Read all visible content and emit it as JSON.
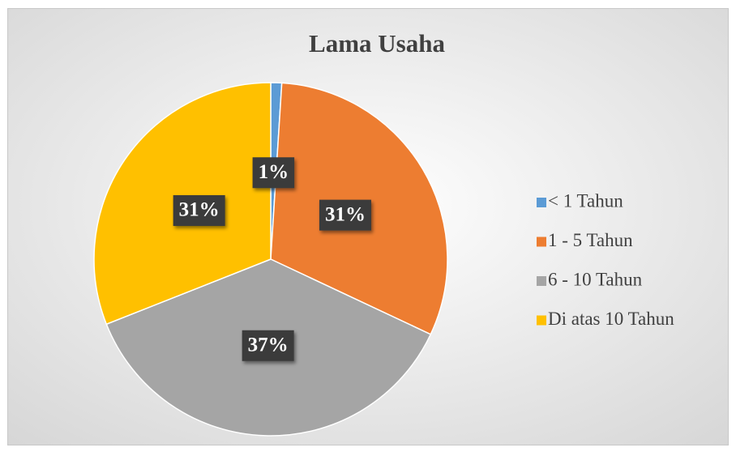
{
  "chart_data": {
    "type": "pie",
    "title": "Lama Usaha",
    "categories": [
      "< 1 Tahun",
      "1 - 5 Tahun",
      "6 - 10 Tahun",
      "Di atas 10 Tahun"
    ],
    "values": [
      1,
      31,
      37,
      31
    ],
    "value_labels": [
      "1%",
      "31%",
      "37%",
      "31%"
    ],
    "colors": [
      "#5b9bd5",
      "#ed7d31",
      "#a5a5a5",
      "#ffc000"
    ],
    "legend": "right"
  }
}
